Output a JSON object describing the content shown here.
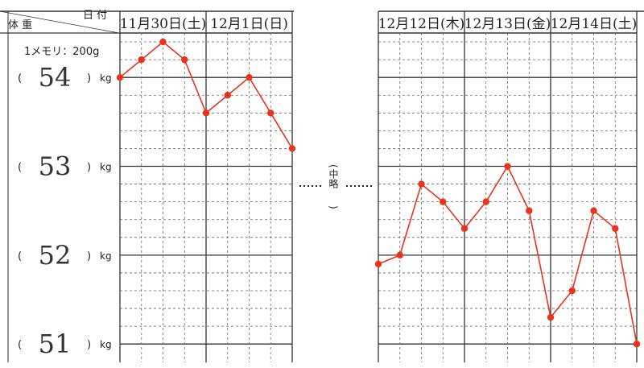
{
  "header": {
    "weight_label": "体 重",
    "date_label": "日 付",
    "scale_note": "1メモリ：200g",
    "omitted_label": "中略",
    "paren_open": "(",
    "paren_close": ")"
  },
  "colors": {
    "series": "#e8331e",
    "grid_major": "#333333",
    "grid_minor": "#666666",
    "text": "#222222"
  },
  "chart_data": {
    "type": "line",
    "ylim": [
      50.875,
      54.5
    ],
    "y_tick_labels": [
      {
        "value": 54,
        "text": "54",
        "unit": "kg"
      },
      {
        "value": 53,
        "text": "53",
        "unit": "kg"
      },
      {
        "value": 52,
        "text": "52",
        "unit": "kg"
      },
      {
        "value": 51,
        "text": "51",
        "unit": "kg"
      }
    ],
    "panels": [
      {
        "dates": [
          "11月30日(土)",
          "12月1日(日)"
        ],
        "values": [
          54.0,
          54.2,
          54.4,
          54.2,
          53.6,
          53.8,
          54.0,
          53.6,
          53.2
        ]
      },
      {
        "dates": [
          "12月12日(木)",
          "12月13日(金)",
          "12月14日(土)"
        ],
        "values": [
          51.9,
          52.0,
          52.8,
          52.6,
          52.3,
          52.6,
          53.0,
          52.5,
          51.3,
          51.6,
          52.5,
          52.3,
          51.0
        ]
      }
    ]
  }
}
